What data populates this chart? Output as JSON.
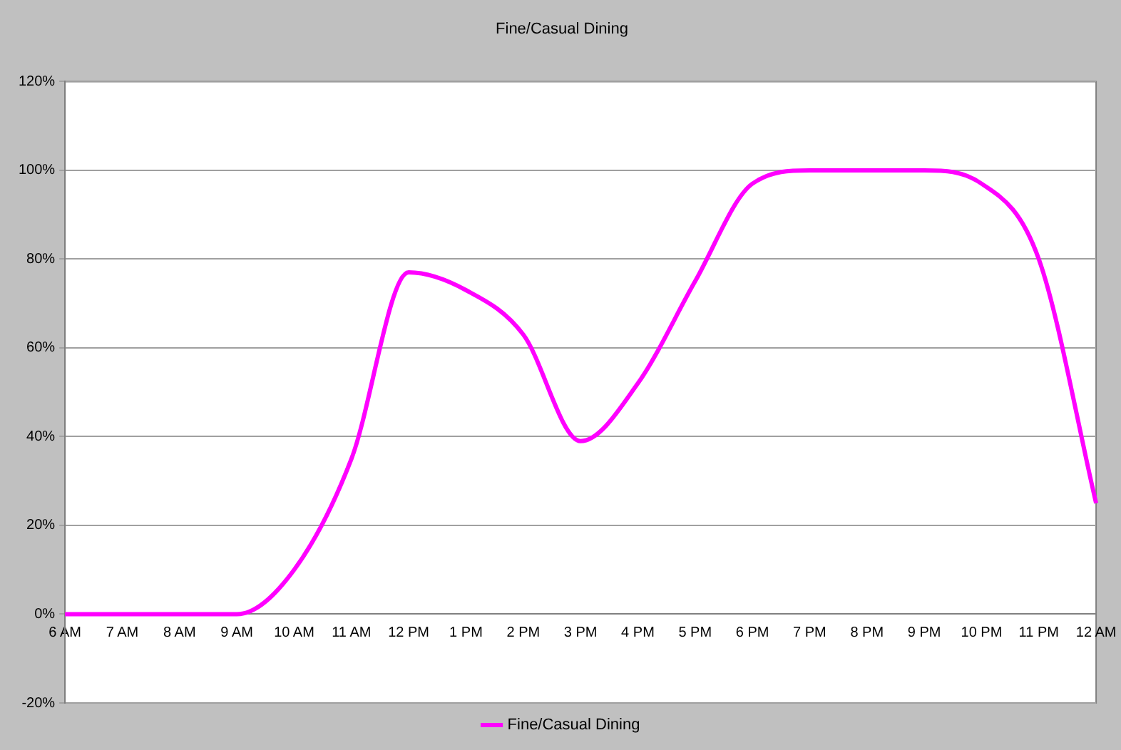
{
  "chart_data": {
    "type": "line",
    "title": "Fine/Casual Dining",
    "categories": [
      "6 AM",
      "7 AM",
      "8 AM",
      "9 AM",
      "10 AM",
      "11 AM",
      "12 PM",
      "1 PM",
      "2 PM",
      "3 PM",
      "4 PM",
      "5 PM",
      "6 PM",
      "7 PM",
      "8 PM",
      "9 PM",
      "10 PM",
      "11 PM",
      "12 AM"
    ],
    "series": [
      {
        "name": "Fine/Casual Dining",
        "color": "#ff00ff",
        "values": [
          0,
          0,
          0,
          0,
          10,
          35,
          77,
          73,
          63,
          39,
          52,
          75,
          97,
          100,
          100,
          100,
          97,
          80,
          25
        ]
      }
    ],
    "ylim": [
      -20,
      120
    ],
    "yticks": [
      {
        "value": -20,
        "label": "-20%"
      },
      {
        "value": 0,
        "label": "0%"
      },
      {
        "value": 20,
        "label": "20%"
      },
      {
        "value": 40,
        "label": "40%"
      },
      {
        "value": 60,
        "label": "60%"
      },
      {
        "value": 80,
        "label": "80%"
      },
      {
        "value": 100,
        "label": "100%"
      },
      {
        "value": 120,
        "label": "120%"
      }
    ],
    "grid": "y",
    "legend": "bottom",
    "marker": "none",
    "line_style": "solid"
  }
}
